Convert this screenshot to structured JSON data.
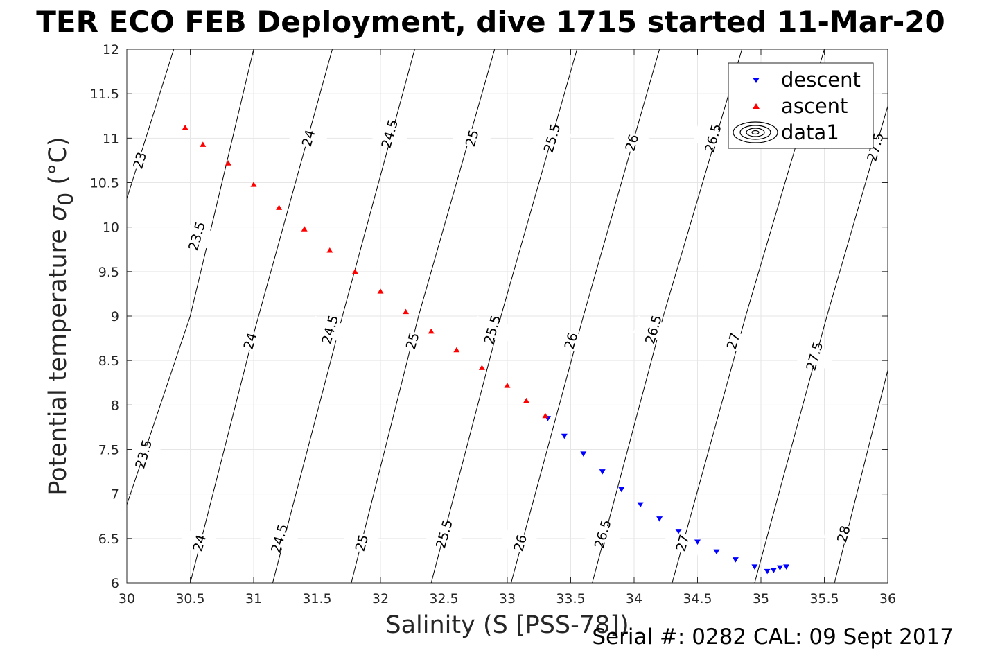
{
  "chart_data": {
    "type": "scatter",
    "title": "TER ECO FEB Deployment, dive 1715 started 11-Mar-20",
    "xlabel": "Salinity (S [PSS-78])",
    "ylabel_main": "Potential temperature ",
    "ylabel_sym": "σ",
    "ylabel_sub": "0",
    "ylabel_unit": " (°C)",
    "footer": "Serial #: 0282  CAL: 09 Sept 2017",
    "xlim": [
      30,
      36
    ],
    "ylim": [
      6,
      12
    ],
    "x_ticks": [
      "30",
      "30.5",
      "31",
      "31.5",
      "32",
      "32.5",
      "33",
      "33.5",
      "34",
      "34.5",
      "35",
      "35.5",
      "36"
    ],
    "y_ticks": [
      "6",
      "6.5",
      "7",
      "7.5",
      "8",
      "8.5",
      "9",
      "9.5",
      "10",
      "10.5",
      "11",
      "11.5",
      "12"
    ],
    "grid": true,
    "legend_position": "top-right",
    "legend": [
      "descent",
      "ascent",
      "data1"
    ],
    "colors": {
      "descent": "#0000ff",
      "ascent": "#ff0000",
      "contour": "#000000",
      "grid": "#e6e6e6"
    },
    "series": [
      {
        "name": "descent",
        "marker": "triangle-down",
        "x": [
          33.32,
          33.45,
          33.6,
          33.75,
          33.9,
          34.05,
          34.2,
          34.35,
          34.5,
          34.65,
          34.8,
          34.95,
          35.05,
          35.1,
          35.15,
          35.2
        ],
        "y": [
          7.85,
          7.65,
          7.45,
          7.25,
          7.05,
          6.88,
          6.72,
          6.58,
          6.46,
          6.35,
          6.26,
          6.18,
          6.13,
          6.14,
          6.17,
          6.18
        ]
      },
      {
        "name": "ascent",
        "marker": "triangle-up",
        "x": [
          30.46,
          30.6,
          30.8,
          31.0,
          31.2,
          31.4,
          31.6,
          31.8,
          32.0,
          32.2,
          32.4,
          32.6,
          32.8,
          33.0,
          33.15,
          33.3
        ],
        "y": [
          11.12,
          10.93,
          10.72,
          10.48,
          10.22,
          9.98,
          9.74,
          9.5,
          9.28,
          9.05,
          8.83,
          8.62,
          8.42,
          8.22,
          8.05,
          7.88
        ]
      }
    ],
    "contours": [
      {
        "label": "23",
        "p1": [
          30.0,
          10.32
        ],
        "p2": [
          30.37,
          12.0
        ]
      },
      {
        "label": "23.5",
        "p1": [
          30.0,
          6.88
        ],
        "p2": [
          30.5,
          9.0
        ],
        "p3": [
          31.0,
          12.0
        ]
      },
      {
        "label": "24",
        "p1": [
          30.5,
          6.0
        ],
        "p2": [
          31.0,
          8.8
        ],
        "p3": [
          31.62,
          12.0
        ]
      },
      {
        "label": "24.5",
        "p1": [
          31.15,
          6.0
        ],
        "p2": [
          31.7,
          9.0
        ],
        "p3": [
          32.27,
          12.0
        ]
      },
      {
        "label": "25",
        "p1": [
          31.77,
          6.0
        ],
        "p2": [
          32.3,
          9.0
        ],
        "p3": [
          32.9,
          12.0
        ]
      },
      {
        "label": "25.5",
        "p1": [
          32.4,
          6.0
        ],
        "p2": [
          32.95,
          9.0
        ],
        "p3": [
          33.55,
          12.0
        ]
      },
      {
        "label": "26",
        "p1": [
          33.03,
          6.0
        ],
        "p2": [
          33.6,
          9.0
        ],
        "p3": [
          34.2,
          12.0
        ]
      },
      {
        "label": "26.5",
        "p1": [
          33.67,
          6.0
        ],
        "p2": [
          34.23,
          9.0
        ],
        "p3": [
          34.85,
          12.0
        ]
      },
      {
        "label": "27",
        "p1": [
          34.3,
          6.0
        ],
        "p2": [
          34.88,
          9.0
        ],
        "p3": [
          35.5,
          12.0
        ]
      },
      {
        "label": "27.5",
        "p1": [
          34.95,
          6.0
        ],
        "p2": [
          35.52,
          9.0
        ],
        "p3": [
          36.0,
          11.36
        ]
      },
      {
        "label": "28",
        "p1": [
          35.58,
          6.0
        ],
        "p2": [
          36.0,
          8.39
        ]
      }
    ],
    "contour_labels": [
      {
        "text": "23",
        "x": 30.1,
        "y": 10.75
      },
      {
        "text": "23.5",
        "x": 30.55,
        "y": 9.9
      },
      {
        "text": "23.5",
        "x": 30.13,
        "y": 7.45
      },
      {
        "text": "24",
        "x": 31.43,
        "y": 11.0
      },
      {
        "text": "24",
        "x": 30.97,
        "y": 8.72
      },
      {
        "text": "24",
        "x": 30.57,
        "y": 6.45
      },
      {
        "text": "24.5",
        "x": 32.07,
        "y": 11.05
      },
      {
        "text": "24.5",
        "x": 31.6,
        "y": 8.85
      },
      {
        "text": "24.5",
        "x": 31.2,
        "y": 6.5
      },
      {
        "text": "25",
        "x": 32.72,
        "y": 11.0
      },
      {
        "text": "25",
        "x": 32.25,
        "y": 8.72
      },
      {
        "text": "25",
        "x": 31.85,
        "y": 6.45
      },
      {
        "text": "25.5",
        "x": 33.35,
        "y": 11.0
      },
      {
        "text": "25.5",
        "x": 32.88,
        "y": 8.85
      },
      {
        "text": "25.5",
        "x": 32.5,
        "y": 6.55
      },
      {
        "text": "26",
        "x": 33.98,
        "y": 10.95
      },
      {
        "text": "26",
        "x": 33.5,
        "y": 8.72
      },
      {
        "text": "26",
        "x": 33.1,
        "y": 6.45
      },
      {
        "text": "26.5",
        "x": 34.62,
        "y": 11.0
      },
      {
        "text": "26.5",
        "x": 34.15,
        "y": 8.85
      },
      {
        "text": "26.5",
        "x": 33.75,
        "y": 6.55
      },
      {
        "text": "27",
        "x": 34.78,
        "y": 8.72
      },
      {
        "text": "27",
        "x": 34.38,
        "y": 6.45
      },
      {
        "text": "27.5",
        "x": 35.9,
        "y": 10.9
      },
      {
        "text": "27.5",
        "x": 35.42,
        "y": 8.55
      },
      {
        "text": "28",
        "x": 35.65,
        "y": 6.55
      }
    ]
  }
}
